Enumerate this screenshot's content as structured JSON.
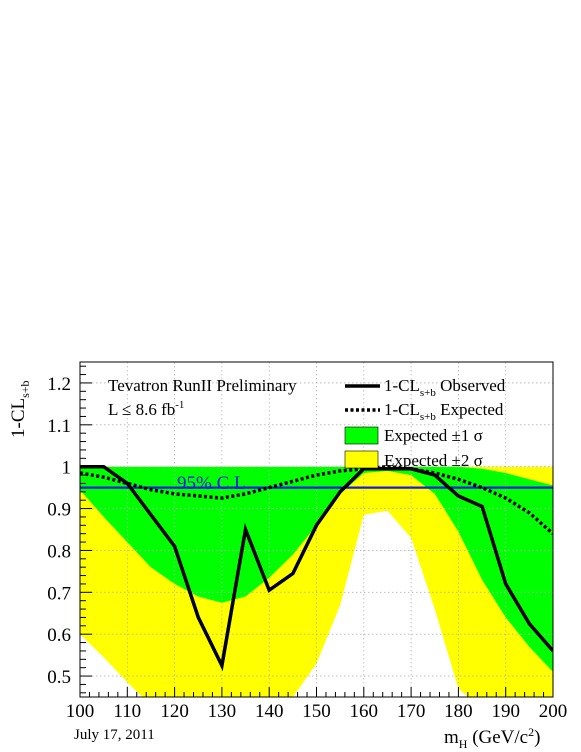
{
  "chart_data": {
    "type": "area",
    "xlim": [
      100,
      200
    ],
    "ylim": [
      0.45,
      1.25
    ],
    "x_ticks": [
      "100",
      "110",
      "120",
      "130",
      "140",
      "150",
      "160",
      "170",
      "180",
      "190",
      "200"
    ],
    "y_ticks": [
      "0.5",
      "0.6",
      "0.7",
      "0.8",
      "0.9",
      "1",
      "1.1",
      "1.2"
    ],
    "ylabel_main": "1-CL",
    "ylabel_sub": "s+b",
    "xlabel_main": "m",
    "xlabel_sub": "H",
    "xlabel_unit_pre": " (GeV/c",
    "xlabel_unit_sup": "2",
    "xlabel_unit_post": ")",
    "grid": true,
    "legend_position": "top-right",
    "annotations": {
      "title": "Tevatron RunII Preliminary",
      "lumi_pre": "L ≤ 8.6 fb",
      "lumi_sup": "-1",
      "date": "July 17, 2011",
      "cl_label": "95% C.L."
    },
    "legend": [
      {
        "main": "1-CL",
        "sub": "s+b",
        "rest": " Observed",
        "swatch": "solid-line"
      },
      {
        "main": "1-CL",
        "sub": "s+b",
        "rest": " Expected",
        "swatch": "dashed-line"
      },
      {
        "main": "Expected ±1 σ",
        "sub": "",
        "rest": "",
        "swatch": "green-box"
      },
      {
        "main": "Expected ±2 σ",
        "sub": "",
        "rest": "",
        "swatch": "yellow-box"
      }
    ],
    "cl_line": 0.95,
    "observed": {
      "x": [
        100,
        105,
        110,
        115,
        120,
        125,
        130,
        135,
        140,
        145,
        150,
        155,
        160,
        165,
        170,
        175,
        180,
        185,
        190,
        195,
        200
      ],
      "y": [
        1.0,
        1.0,
        0.96,
        0.885,
        0.81,
        0.64,
        0.525,
        0.85,
        0.705,
        0.745,
        0.86,
        0.94,
        0.995,
        0.995,
        0.995,
        0.98,
        0.93,
        0.905,
        0.72,
        0.625,
        0.56
      ]
    },
    "expected": {
      "x": [
        100,
        105,
        110,
        115,
        120,
        125,
        130,
        135,
        140,
        145,
        150,
        155,
        160,
        165,
        170,
        175,
        180,
        185,
        190,
        195,
        200
      ],
      "y": [
        0.985,
        0.975,
        0.96,
        0.945,
        0.935,
        0.93,
        0.925,
        0.935,
        0.95,
        0.965,
        0.98,
        0.99,
        0.995,
        1.0,
        0.995,
        0.985,
        0.97,
        0.95,
        0.925,
        0.89,
        0.84
      ]
    },
    "band_1sigma": {
      "x": [
        100,
        105,
        110,
        115,
        120,
        125,
        130,
        135,
        140,
        145,
        150,
        155,
        160,
        165,
        170,
        175,
        180,
        185,
        190,
        195,
        200
      ],
      "low": [
        0.945,
        0.88,
        0.82,
        0.76,
        0.72,
        0.69,
        0.675,
        0.69,
        0.735,
        0.79,
        0.86,
        0.935,
        0.985,
        0.99,
        0.98,
        0.935,
        0.845,
        0.73,
        0.64,
        0.57,
        0.51
      ],
      "high": [
        1.0,
        1.0,
        1.0,
        1.0,
        1.0,
        1.0,
        1.0,
        1.0,
        1.0,
        1.0,
        1.0,
        1.0,
        1.0,
        1.0,
        1.0,
        1.0,
        1.0,
        0.995,
        0.985,
        0.97,
        0.955
      ]
    },
    "band_2sigma": {
      "x": [
        100,
        105,
        110,
        115,
        120,
        125,
        130,
        135,
        140,
        145,
        150,
        155,
        160,
        165,
        170,
        175,
        180,
        185,
        190,
        195,
        200
      ],
      "low": [
        0.6,
        0.545,
        0.485,
        0.43,
        0.4,
        0.38,
        0.37,
        0.38,
        0.4,
        0.45,
        0.53,
        0.67,
        0.885,
        0.895,
        0.83,
        0.66,
        0.47,
        0.42,
        0.4,
        0.39,
        0.38
      ],
      "high": [
        1.0,
        1.0,
        1.0,
        1.0,
        1.0,
        1.0,
        1.0,
        1.0,
        1.0,
        1.0,
        1.0,
        1.0,
        1.0,
        1.0,
        1.0,
        1.0,
        1.0,
        1.0,
        1.0,
        1.0,
        1.0
      ]
    },
    "colors": {
      "observed": "#000000",
      "expected": "#000000",
      "band_1sigma": "#00ff00",
      "band_2sigma": "#ffff00",
      "cl_line": "#1a1ae6",
      "cl_label": "#1a1ae6",
      "grid": "#b4b4b4"
    }
  }
}
